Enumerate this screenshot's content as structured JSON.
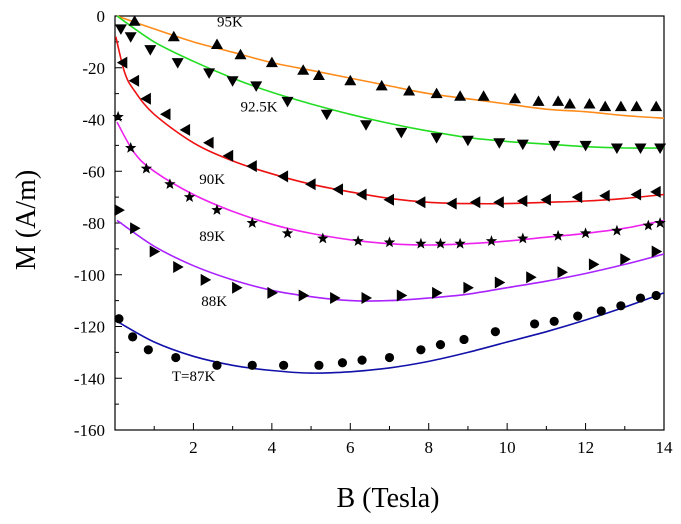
{
  "chart_data": {
    "type": "scatter",
    "xlabel": "B (Tesla)",
    "ylabel": "M (A/m)",
    "xlim": [
      0,
      14
    ],
    "ylim": [
      -160,
      0
    ],
    "x_ticks": [
      2,
      4,
      6,
      8,
      10,
      12,
      14
    ],
    "y_ticks": [
      0,
      -20,
      -40,
      -60,
      -80,
      -100,
      -120,
      -140,
      -160
    ],
    "grid": false,
    "series": [
      {
        "name": "95K",
        "marker": "triangle-up",
        "fit_color": "#ff8c1a",
        "label_at": [
          2.6,
          -4
        ],
        "points": [
          [
            0.5,
            -2
          ],
          [
            1.5,
            -8
          ],
          [
            2.6,
            -11
          ],
          [
            3.2,
            -15
          ],
          [
            4.0,
            -18
          ],
          [
            4.8,
            -21
          ],
          [
            5.2,
            -23
          ],
          [
            6.0,
            -25
          ],
          [
            6.8,
            -27
          ],
          [
            7.5,
            -29
          ],
          [
            8.2,
            -30
          ],
          [
            8.8,
            -31
          ],
          [
            9.4,
            -31
          ],
          [
            10.2,
            -32
          ],
          [
            10.8,
            -33
          ],
          [
            11.3,
            -33
          ],
          [
            11.6,
            -34
          ],
          [
            12.1,
            -34
          ],
          [
            12.5,
            -35
          ],
          [
            12.9,
            -35
          ],
          [
            13.3,
            -35
          ],
          [
            13.8,
            -35
          ]
        ],
        "fit": [
          [
            0.05,
            0
          ],
          [
            1,
            -5
          ],
          [
            2,
            -10
          ],
          [
            3,
            -14
          ],
          [
            4,
            -18
          ],
          [
            5,
            -21
          ],
          [
            6,
            -24
          ],
          [
            7,
            -27
          ],
          [
            8,
            -30
          ],
          [
            9,
            -32
          ],
          [
            10,
            -34
          ],
          [
            11,
            -36
          ],
          [
            12,
            -37
          ],
          [
            13,
            -38.5
          ],
          [
            14,
            -39.5
          ]
        ]
      },
      {
        "name": "92.5K",
        "marker": "triangle-down",
        "fit_color": "#22dd22",
        "label_at": [
          3.2,
          -37
        ],
        "points": [
          [
            0.15,
            -5
          ],
          [
            0.4,
            -8
          ],
          [
            0.9,
            -13
          ],
          [
            1.6,
            -18
          ],
          [
            2.4,
            -22
          ],
          [
            3.0,
            -25
          ],
          [
            3.6,
            -27
          ],
          [
            4.4,
            -33
          ],
          [
            5.4,
            -38
          ],
          [
            6.4,
            -42
          ],
          [
            7.3,
            -45
          ],
          [
            8.2,
            -47
          ],
          [
            9.0,
            -48
          ],
          [
            9.8,
            -49
          ],
          [
            10.4,
            -49.5
          ],
          [
            11.2,
            -50
          ],
          [
            12.0,
            -50
          ],
          [
            12.8,
            -51
          ],
          [
            13.4,
            -51
          ],
          [
            13.9,
            -51
          ]
        ],
        "fit": [
          [
            0.05,
            0
          ],
          [
            1,
            -10
          ],
          [
            2,
            -17.5
          ],
          [
            3,
            -24
          ],
          [
            4,
            -29.5
          ],
          [
            5,
            -34
          ],
          [
            6,
            -38
          ],
          [
            7,
            -41.5
          ],
          [
            8,
            -44.5
          ],
          [
            9,
            -47
          ],
          [
            10,
            -48.5
          ],
          [
            11,
            -49.5
          ],
          [
            12,
            -50.5
          ],
          [
            13,
            -51
          ],
          [
            14,
            -51
          ]
        ]
      },
      {
        "name": "90K",
        "marker": "triangle-left",
        "fit_color": "#ee1111",
        "label_at": [
          2.15,
          -65
        ],
        "points": [
          [
            0.2,
            -18
          ],
          [
            0.5,
            -25
          ],
          [
            0.8,
            -32
          ],
          [
            1.3,
            -38
          ],
          [
            1.8,
            -44
          ],
          [
            2.4,
            -49
          ],
          [
            2.9,
            -54
          ],
          [
            3.5,
            -58
          ],
          [
            4.3,
            -62
          ],
          [
            5.0,
            -65
          ],
          [
            5.7,
            -67
          ],
          [
            6.3,
            -69
          ],
          [
            7.0,
            -71
          ],
          [
            7.8,
            -72
          ],
          [
            8.6,
            -72.5
          ],
          [
            9.2,
            -72
          ],
          [
            9.8,
            -72
          ],
          [
            10.4,
            -71.5
          ],
          [
            11.0,
            -71
          ],
          [
            11.8,
            -70
          ],
          [
            12.5,
            -69.5
          ],
          [
            13.3,
            -69
          ],
          [
            13.8,
            -68
          ]
        ],
        "fit": [
          [
            0.02,
            -8
          ],
          [
            0.25,
            -22
          ],
          [
            0.5,
            -29
          ],
          [
            1,
            -38
          ],
          [
            2,
            -49
          ],
          [
            3,
            -56
          ],
          [
            4,
            -61
          ],
          [
            5,
            -65
          ],
          [
            6,
            -68
          ],
          [
            7,
            -70.5
          ],
          [
            8,
            -72
          ],
          [
            9,
            -72.5
          ],
          [
            10,
            -72.5
          ],
          [
            11,
            -72
          ],
          [
            12,
            -71.5
          ],
          [
            13,
            -70.5
          ],
          [
            14,
            -69
          ]
        ]
      },
      {
        "name": "89K",
        "marker": "star",
        "fit_color": "#ee22ee",
        "label_at": [
          2.15,
          -87
        ],
        "points": [
          [
            0.08,
            -39
          ],
          [
            0.4,
            -51
          ],
          [
            0.8,
            -59
          ],
          [
            1.4,
            -65
          ],
          [
            1.9,
            -70
          ],
          [
            2.6,
            -75
          ],
          [
            3.5,
            -80
          ],
          [
            4.4,
            -84
          ],
          [
            5.3,
            -86
          ],
          [
            6.2,
            -87
          ],
          [
            7.0,
            -87.5
          ],
          [
            7.8,
            -88
          ],
          [
            8.3,
            -88
          ],
          [
            8.8,
            -88
          ],
          [
            9.6,
            -87
          ],
          [
            10.4,
            -86
          ],
          [
            11.3,
            -85
          ],
          [
            12.0,
            -84
          ],
          [
            12.8,
            -83
          ],
          [
            13.6,
            -81
          ],
          [
            13.9,
            -80
          ]
        ],
        "fit": [
          [
            0.05,
            -41
          ],
          [
            0.5,
            -53
          ],
          [
            1,
            -60
          ],
          [
            2,
            -69
          ],
          [
            3,
            -75.5
          ],
          [
            4,
            -80.5
          ],
          [
            5,
            -84
          ],
          [
            6,
            -86.5
          ],
          [
            7,
            -88
          ],
          [
            8,
            -88.5
          ],
          [
            9,
            -88
          ],
          [
            10,
            -87
          ],
          [
            11,
            -85.5
          ],
          [
            12,
            -84
          ],
          [
            13,
            -82
          ],
          [
            14,
            -79
          ]
        ]
      },
      {
        "name": "88K",
        "marker": "triangle-right",
        "fit_color": "#aa22ff",
        "label_at": [
          2.2,
          -112
        ],
        "points": [
          [
            0.1,
            -75
          ],
          [
            0.5,
            -82
          ],
          [
            1.0,
            -91
          ],
          [
            1.6,
            -97
          ],
          [
            2.3,
            -102
          ],
          [
            3.1,
            -105
          ],
          [
            4.0,
            -107
          ],
          [
            4.8,
            -108
          ],
          [
            5.6,
            -109
          ],
          [
            6.4,
            -109
          ],
          [
            7.3,
            -108
          ],
          [
            8.2,
            -107
          ],
          [
            9.0,
            -105
          ],
          [
            9.8,
            -103
          ],
          [
            10.6,
            -101
          ],
          [
            11.4,
            -99
          ],
          [
            12.2,
            -96
          ],
          [
            13.0,
            -94
          ],
          [
            13.8,
            -91
          ]
        ],
        "fit": [
          [
            0.05,
            -79
          ],
          [
            1,
            -89
          ],
          [
            2,
            -96.5
          ],
          [
            3,
            -102
          ],
          [
            4,
            -106
          ],
          [
            5,
            -108.5
          ],
          [
            6,
            -110
          ],
          [
            7,
            -110
          ],
          [
            8,
            -109
          ],
          [
            9,
            -107.5
          ],
          [
            10,
            -105
          ],
          [
            11,
            -102.5
          ],
          [
            12,
            -99.5
          ],
          [
            13,
            -96
          ],
          [
            14,
            -92
          ]
        ]
      },
      {
        "name": "T=87K",
        "marker": "circle",
        "fit_color": "#1111aa",
        "label_at": [
          1.45,
          -141
        ],
        "points": [
          [
            0.1,
            -117
          ],
          [
            0.45,
            -124
          ],
          [
            0.85,
            -129
          ],
          [
            1.55,
            -132
          ],
          [
            2.6,
            -135
          ],
          [
            3.5,
            -135
          ],
          [
            4.3,
            -135
          ],
          [
            5.2,
            -135
          ],
          [
            5.8,
            -134
          ],
          [
            6.3,
            -133
          ],
          [
            7.0,
            -132
          ],
          [
            7.8,
            -129
          ],
          [
            8.3,
            -127
          ],
          [
            8.9,
            -125
          ],
          [
            9.7,
            -122
          ],
          [
            10.7,
            -119
          ],
          [
            11.2,
            -118
          ],
          [
            11.8,
            -116
          ],
          [
            12.4,
            -114
          ],
          [
            12.9,
            -112
          ],
          [
            13.4,
            -109
          ],
          [
            13.8,
            -108
          ]
        ],
        "fit": [
          [
            0.05,
            -118
          ],
          [
            1,
            -126
          ],
          [
            2,
            -131.5
          ],
          [
            3,
            -135
          ],
          [
            4,
            -137
          ],
          [
            5,
            -138
          ],
          [
            6,
            -137.5
          ],
          [
            7,
            -136
          ],
          [
            8,
            -133.5
          ],
          [
            9,
            -130
          ],
          [
            10,
            -126
          ],
          [
            11,
            -122
          ],
          [
            12,
            -117.5
          ],
          [
            13,
            -112.5
          ],
          [
            14,
            -107
          ]
        ]
      }
    ]
  }
}
